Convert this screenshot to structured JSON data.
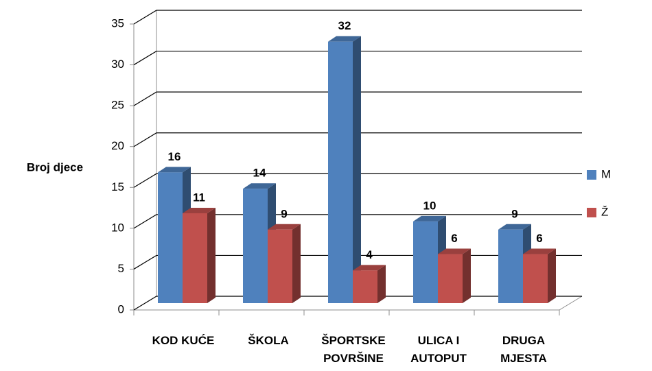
{
  "chart_data": {
    "type": "bar3d",
    "y_label": "Broj djece",
    "categories": [
      "KOD KUĆE",
      "ŠKOLA",
      "ŠPORTSKE POVRŠINE",
      "ULICA I AUTOPUT",
      "DRUGA MJESTA"
    ],
    "series": [
      {
        "name": "M",
        "color": "#4f81bd",
        "values": [
          16,
          14,
          32,
          10,
          9
        ]
      },
      {
        "name": "Ž",
        "color": "#c0504d",
        "values": [
          11,
          9,
          4,
          6,
          6
        ]
      }
    ],
    "ylim": [
      0,
      35
    ],
    "yticks": [
      0,
      5,
      10,
      15,
      20,
      25,
      30,
      35
    ],
    "grid": true,
    "legend": "right"
  }
}
